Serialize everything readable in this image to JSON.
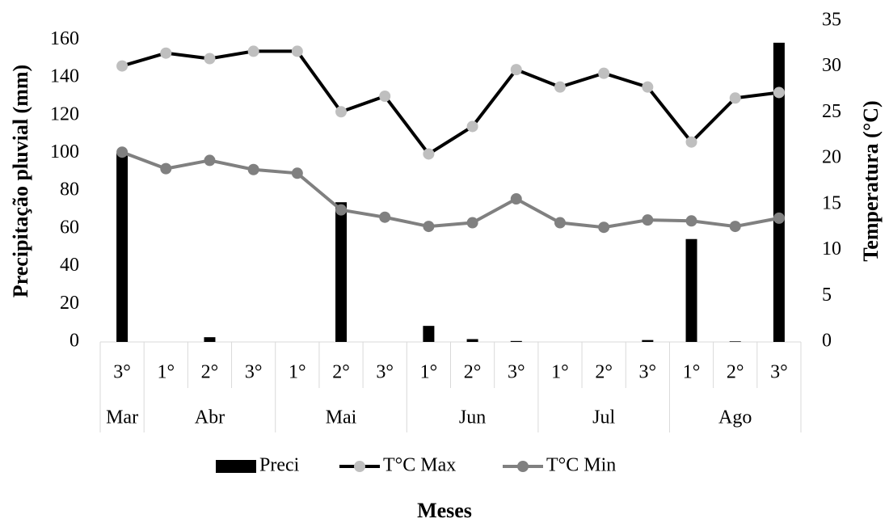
{
  "chart_data": {
    "type": "bar",
    "y_label": "Precipitação pluvial (mm)",
    "y2_label": "Temperatura (°C)",
    "x_label": "Meses",
    "categories": [
      "3°",
      "1°",
      "2°",
      "3°",
      "1°",
      "2°",
      "3°",
      "1°",
      "2°",
      "3°",
      "1°",
      "2°",
      "3°",
      "1°",
      "2°",
      "3°"
    ],
    "groups": [
      {
        "label": "Mar",
        "span": 1
      },
      {
        "label": "Abr",
        "span": 3
      },
      {
        "label": "Mai",
        "span": 3
      },
      {
        "label": "Jun",
        "span": 3
      },
      {
        "label": "Jul",
        "span": 3
      },
      {
        "label": "Ago",
        "span": 3
      }
    ],
    "ylim": [
      0,
      170
    ],
    "yticks": [
      0,
      20,
      40,
      60,
      80,
      100,
      120,
      140,
      160
    ],
    "y2lim": [
      0,
      35
    ],
    "y2ticks": [
      0,
      5,
      10,
      15,
      20,
      25,
      30,
      35
    ],
    "series": [
      {
        "name": "Preci",
        "type": "bar",
        "color": "#000000",
        "values": [
          100,
          0,
          2.5,
          0,
          0,
          74,
          0,
          8.5,
          1.5,
          0.5,
          0,
          0,
          1,
          54.5,
          0.3,
          158.5
        ]
      },
      {
        "name": "T°C Max",
        "type": "line",
        "axis": "y2",
        "color": "#000000",
        "marker_color": "#bfbfbf",
        "values": [
          30.1,
          31.5,
          30.9,
          31.7,
          31.7,
          25.1,
          26.8,
          20.5,
          23.5,
          29.7,
          27.8,
          29.3,
          27.8,
          21.8,
          26.6,
          27.2
        ]
      },
      {
        "name": "T°C Min",
        "type": "line",
        "axis": "y2",
        "color": "#808080",
        "marker_color": "#808080",
        "values": [
          20.7,
          18.9,
          19.8,
          18.8,
          18.4,
          14.4,
          13.6,
          12.6,
          13.0,
          15.6,
          13.0,
          12.5,
          13.3,
          13.2,
          12.6,
          13.5
        ]
      }
    ]
  }
}
